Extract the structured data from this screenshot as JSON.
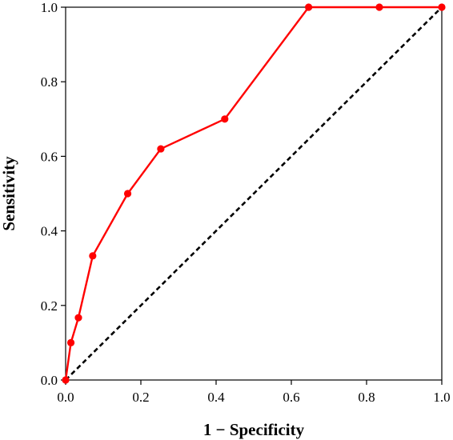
{
  "chart_data": {
    "type": "line",
    "title": "",
    "xlabel": "1 − Specificity",
    "ylabel": "Sensitivity",
    "xlim": [
      0.0,
      1.0
    ],
    "ylim": [
      0.0,
      1.0
    ],
    "x_ticks": [
      "0.0",
      "0.2",
      "0.4",
      "0.6",
      "0.8",
      "1.0"
    ],
    "y_ticks": [
      "0.0",
      "0.2",
      "0.4",
      "0.6",
      "0.8",
      "1.0"
    ],
    "grid": false,
    "legend": "none",
    "series": [
      {
        "style": "solid",
        "color": "#ff0000",
        "markers": true,
        "x": [
          0.0,
          0.014,
          0.034,
          0.072,
          0.165,
          0.253,
          0.423,
          0.646,
          0.834,
          1.0
        ],
        "y": [
          0.0,
          0.1,
          0.167,
          0.333,
          0.5,
          0.62,
          0.7,
          1.0,
          1.0,
          1.0
        ]
      },
      {
        "style": "dashed",
        "color": "#000000",
        "markers": false,
        "x": [
          0.0,
          1.0
        ],
        "y": [
          0.0,
          1.0
        ]
      }
    ]
  }
}
